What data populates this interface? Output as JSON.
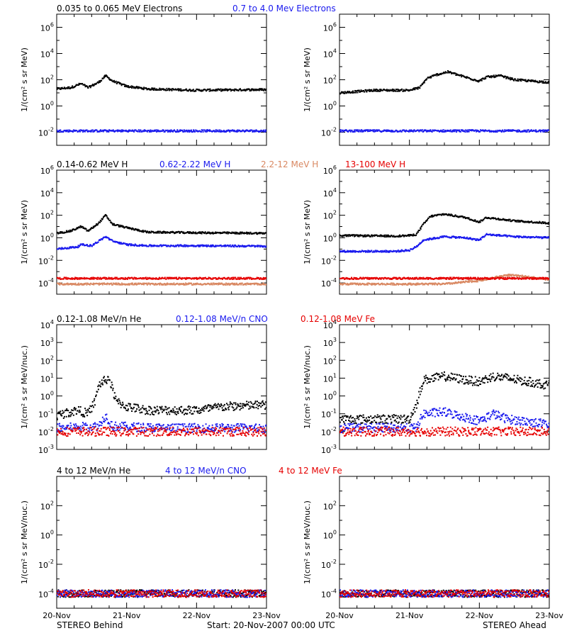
{
  "colors": {
    "black": "#000000",
    "blue": "#1a1aee",
    "tan": "#d98862",
    "red": "#e60000"
  },
  "footer": {
    "left": "STEREO Behind",
    "center": "Start: 20-Nov-2007 00:00 UTC",
    "right": "STEREO Ahead"
  },
  "rows": [
    {
      "labels": [
        {
          "text": "0.035 to 0.065 MeV Electrons",
          "color": "#000000"
        },
        {
          "text": "0.7 to 4.0 Mev Electrons",
          "color": "#1a1aee"
        }
      ]
    },
    {
      "labels": [
        {
          "text": "0.14-0.62 MeV H",
          "color": "#000000"
        },
        {
          "text": "0.62-2.22 MeV H",
          "color": "#1a1aee"
        },
        {
          "text": "2.2-12 MeV H",
          "color": "#d98862"
        },
        {
          "text": "13-100 MeV H",
          "color": "#e60000"
        }
      ]
    },
    {
      "labels": [
        {
          "text": "0.12-1.08 MeV/n He",
          "color": "#000000"
        },
        {
          "text": "0.12-1.08 MeV/n CNO",
          "color": "#1a1aee"
        },
        {
          "text": "0.12-1.08 MeV Fe",
          "color": "#e60000"
        }
      ]
    },
    {
      "labels": [
        {
          "text": "4 to 12 MeV/n He",
          "color": "#000000"
        },
        {
          "text": "4 to 12 MeV/n CNO",
          "color": "#1a1aee"
        },
        {
          "text": "4 to 12 MeV Fe",
          "color": "#e60000"
        }
      ]
    }
  ],
  "chart_data": [
    {
      "type": "scatter",
      "panel": "electrons-behind",
      "scale": "log",
      "ylabel": "1/(cm² s sr MeV)",
      "ylim_exp": [
        -3,
        7
      ],
      "x_ticks": [
        "20-Nov",
        "21-Nov",
        "22-Nov",
        "23-Nov"
      ],
      "x_range_days": [
        0,
        3
      ],
      "y_ticks": [
        {
          "base": "10",
          "exp": "6"
        },
        {
          "base": "10",
          "exp": "4"
        },
        {
          "base": "10",
          "exp": "2"
        },
        {
          "base": "10",
          "exp": "0"
        },
        {
          "base": "10",
          "exp": "-2"
        }
      ],
      "series": [
        {
          "name": "0.035 to 0.065 MeV Electrons",
          "color": "#000000",
          "x": [
            0,
            0.2,
            0.35,
            0.45,
            0.6,
            0.7,
            0.8,
            1.0,
            1.3,
            2.0,
            3.0
          ],
          "y": [
            1.3,
            1.4,
            1.7,
            1.4,
            1.8,
            2.3,
            1.9,
            1.5,
            1.3,
            1.2,
            1.25
          ]
        },
        {
          "name": "0.7 to 4.0 Mev Electrons",
          "color": "#1a1aee",
          "x": [
            0,
            1.5,
            3.0
          ],
          "y": [
            -1.9,
            -1.9,
            -1.9
          ]
        }
      ]
    },
    {
      "type": "scatter",
      "panel": "electrons-ahead",
      "scale": "log",
      "ylabel": "1/(cm² s sr MeV)",
      "ylim_exp": [
        -3,
        7
      ],
      "x_ticks": [
        "20-Nov",
        "21-Nov",
        "22-Nov",
        "23-Nov"
      ],
      "x_range_days": [
        0,
        3
      ],
      "y_ticks": [
        {
          "base": "10",
          "exp": "6"
        },
        {
          "base": "10",
          "exp": "4"
        },
        {
          "base": "10",
          "exp": "2"
        },
        {
          "base": "10",
          "exp": "0"
        },
        {
          "base": "10",
          "exp": "-2"
        }
      ],
      "series": [
        {
          "name": "0.035 to 0.065 MeV Electrons",
          "color": "#000000",
          "x": [
            0,
            0.5,
            1.0,
            1.15,
            1.25,
            1.4,
            1.55,
            1.8,
            2.0,
            2.1,
            2.3,
            2.5,
            3.0
          ],
          "y": [
            1.0,
            1.2,
            1.2,
            1.4,
            2.1,
            2.4,
            2.6,
            2.2,
            1.9,
            2.2,
            2.3,
            2.0,
            1.8
          ]
        },
        {
          "name": "0.7 to 4.0 Mev Electrons",
          "color": "#1a1aee",
          "x": [
            0,
            1.5,
            3.0
          ],
          "y": [
            -1.9,
            -1.9,
            -1.9
          ]
        }
      ]
    },
    {
      "type": "scatter",
      "panel": "protons-behind",
      "scale": "log",
      "ylabel": "1/(cm² s sr MeV)",
      "ylim_exp": [
        -5,
        6
      ],
      "x_ticks": [
        "20-Nov",
        "21-Nov",
        "22-Nov",
        "23-Nov"
      ],
      "x_range_days": [
        0,
        3
      ],
      "y_ticks": [
        {
          "base": "10",
          "exp": "6"
        },
        {
          "base": "10",
          "exp": "4"
        },
        {
          "base": "10",
          "exp": "2"
        },
        {
          "base": "10",
          "exp": "0"
        },
        {
          "base": "10",
          "exp": "-2"
        },
        {
          "base": "10",
          "exp": "-4"
        }
      ],
      "series": [
        {
          "name": "0.14-0.62 MeV H",
          "color": "#000000",
          "x": [
            0,
            0.2,
            0.35,
            0.45,
            0.6,
            0.7,
            0.8,
            1.0,
            1.3,
            2.0,
            3.0
          ],
          "y": [
            0.4,
            0.6,
            1.0,
            0.6,
            1.3,
            2.0,
            1.2,
            0.9,
            0.5,
            0.45,
            0.4
          ]
        },
        {
          "name": "0.62-2.22 MeV H",
          "color": "#1a1aee",
          "x": [
            0,
            0.3,
            0.35,
            0.5,
            0.7,
            0.8,
            1.0,
            1.3,
            2.0,
            3.0
          ],
          "y": [
            -1.0,
            -0.8,
            -0.6,
            -0.7,
            0.1,
            -0.3,
            -0.6,
            -0.7,
            -0.7,
            -0.75
          ]
        },
        {
          "name": "2.2-12 MeV H",
          "color": "#d98862",
          "x": [
            0,
            1.5,
            3.0
          ],
          "y": [
            -4.1,
            -4.1,
            -4.1
          ]
        },
        {
          "name": "13-100 MeV H",
          "color": "#e60000",
          "x": [
            0,
            1.5,
            3.0
          ],
          "y": [
            -3.6,
            -3.6,
            -3.6
          ]
        }
      ]
    },
    {
      "type": "scatter",
      "panel": "protons-ahead",
      "scale": "log",
      "ylabel": "1/(cm² s sr MeV)",
      "ylim_exp": [
        -5,
        6
      ],
      "x_ticks": [
        "20-Nov",
        "21-Nov",
        "22-Nov",
        "23-Nov"
      ],
      "x_range_days": [
        0,
        3
      ],
      "y_ticks": [
        {
          "base": "10",
          "exp": "6"
        },
        {
          "base": "10",
          "exp": "4"
        },
        {
          "base": "10",
          "exp": "2"
        },
        {
          "base": "10",
          "exp": "0"
        },
        {
          "base": "10",
          "exp": "-2"
        },
        {
          "base": "10",
          "exp": "-4"
        }
      ],
      "series": [
        {
          "name": "0.14-0.62 MeV H",
          "color": "#000000",
          "x": [
            0,
            0.8,
            1.0,
            1.1,
            1.2,
            1.3,
            1.5,
            1.8,
            2.0,
            2.1,
            2.5,
            3.0
          ],
          "y": [
            0.2,
            0.15,
            0.2,
            0.3,
            1.2,
            1.9,
            2.1,
            1.8,
            1.4,
            1.8,
            1.5,
            1.3
          ]
        },
        {
          "name": "0.62-2.22 MeV H",
          "color": "#1a1aee",
          "x": [
            0,
            0.8,
            1.0,
            1.1,
            1.2,
            1.5,
            1.8,
            2.0,
            2.1,
            2.5,
            3.0
          ],
          "y": [
            -1.2,
            -1.2,
            -1.1,
            -0.8,
            -0.2,
            0.1,
            0.0,
            -0.2,
            0.3,
            0.1,
            0.0
          ]
        },
        {
          "name": "2.2-12 MeV H",
          "color": "#d98862",
          "x": [
            0,
            1.5,
            2.0,
            2.4,
            2.6,
            3.0
          ],
          "y": [
            -4.1,
            -4.1,
            -3.8,
            -3.3,
            -3.4,
            -3.7
          ]
        },
        {
          "name": "13-100 MeV H",
          "color": "#e60000",
          "x": [
            0,
            1.5,
            3.0
          ],
          "y": [
            -3.6,
            -3.6,
            -3.6
          ]
        }
      ]
    },
    {
      "type": "scatter",
      "panel": "heavy-low-behind",
      "scale": "log",
      "ylabel": "1/(cm² s sr MeV/nuc.)",
      "ylim_exp": [
        -3,
        4
      ],
      "x_ticks": [
        "20-Nov",
        "21-Nov",
        "22-Nov",
        "23-Nov"
      ],
      "x_range_days": [
        0,
        3
      ],
      "y_ticks": [
        {
          "base": "10",
          "exp": "4"
        },
        {
          "base": "10",
          "exp": "3"
        },
        {
          "base": "10",
          "exp": "2"
        },
        {
          "base": "10",
          "exp": "1"
        },
        {
          "base": "10",
          "exp": "0"
        },
        {
          "base": "10",
          "exp": "-1"
        },
        {
          "base": "10",
          "exp": "-2"
        },
        {
          "base": "10",
          "exp": "-3"
        }
      ],
      "series": [
        {
          "name": "0.12-1.08 MeV/n He",
          "color": "#000000",
          "x": [
            0,
            0.3,
            0.45,
            0.55,
            0.6,
            0.7,
            0.75,
            0.85,
            1.0,
            1.3,
            2.0,
            2.4,
            3.0
          ],
          "y": [
            -1.1,
            -0.8,
            -1.0,
            -0.3,
            0.6,
            0.9,
            1.0,
            -0.3,
            -0.6,
            -0.8,
            -0.8,
            -0.6,
            -0.5
          ]
        },
        {
          "name": "0.12-1.08 MeV/n CNO",
          "color": "#1a1aee",
          "x": [
            0,
            0.6,
            0.7,
            0.8,
            1.5,
            3.0
          ],
          "y": [
            -1.8,
            -1.7,
            -1.1,
            -1.7,
            -1.8,
            -1.8
          ]
        },
        {
          "name": "0.12-1.08 MeV Fe",
          "color": "#e60000",
          "x": [
            0,
            1.5,
            3.0
          ],
          "y": [
            -2.0,
            -2.0,
            -2.0
          ]
        }
      ]
    },
    {
      "type": "scatter",
      "panel": "heavy-low-ahead",
      "scale": "log",
      "ylabel": "1/(cm² s sr MeV/nuc.)",
      "ylim_exp": [
        -3,
        4
      ],
      "x_ticks": [
        "20-Nov",
        "21-Nov",
        "22-Nov",
        "23-Nov"
      ],
      "x_range_days": [
        0,
        3
      ],
      "y_ticks": [
        {
          "base": "10",
          "exp": "4"
        },
        {
          "base": "10",
          "exp": "3"
        },
        {
          "base": "10",
          "exp": "2"
        },
        {
          "base": "10",
          "exp": "1"
        },
        {
          "base": "10",
          "exp": "0"
        },
        {
          "base": "10",
          "exp": "-1"
        },
        {
          "base": "10",
          "exp": "-2"
        },
        {
          "base": "10",
          "exp": "-3"
        }
      ],
      "series": [
        {
          "name": "0.12-1.08 MeV/n He",
          "color": "#000000",
          "x": [
            0,
            0.8,
            1.0,
            1.1,
            1.2,
            1.5,
            1.8,
            2.0,
            2.2,
            2.4,
            2.7,
            3.0
          ],
          "y": [
            -1.3,
            -1.3,
            -1.3,
            -0.5,
            0.9,
            1.1,
            0.9,
            0.8,
            1.1,
            1.0,
            0.8,
            0.6
          ]
        },
        {
          "name": "0.12-1.08 MeV/n CNO",
          "color": "#1a1aee",
          "x": [
            0,
            1.1,
            1.2,
            1.5,
            1.8,
            2.0,
            2.2,
            2.4,
            3.0
          ],
          "y": [
            -1.8,
            -1.8,
            -1.0,
            -0.9,
            -1.2,
            -1.4,
            -1.0,
            -1.3,
            -1.6
          ]
        },
        {
          "name": "0.12-1.08 MeV Fe",
          "color": "#e60000",
          "x": [
            0,
            1.5,
            3.0
          ],
          "y": [
            -2.0,
            -2.0,
            -2.0
          ]
        }
      ]
    },
    {
      "type": "scatter",
      "panel": "heavy-high-behind",
      "scale": "log",
      "ylabel": "1/(cm² s sr MeV/nuc.)",
      "ylim_exp": [
        -5,
        4
      ],
      "x_ticks": [
        "20-Nov",
        "21-Nov",
        "22-Nov",
        "23-Nov"
      ],
      "x_range_days": [
        0,
        3
      ],
      "y_ticks": [
        {
          "base": "10",
          "exp": "2"
        },
        {
          "base": "10",
          "exp": "0"
        },
        {
          "base": "10",
          "exp": "-2"
        },
        {
          "base": "10",
          "exp": "-4"
        }
      ],
      "series": [
        {
          "name": "4 to 12 MeV/n He",
          "color": "#000000",
          "x": [
            0,
            1.5,
            3.0
          ],
          "y": [
            -4.0,
            -4.0,
            -4.0
          ]
        },
        {
          "name": "4 to 12 MeV/n CNO",
          "color": "#1a1aee",
          "x": [
            0,
            1.5,
            3.0
          ],
          "y": [
            -4.0,
            -4.0,
            -4.0
          ]
        },
        {
          "name": "4 to 12 MeV Fe",
          "color": "#e60000",
          "x": [
            0,
            1.5,
            3.0
          ],
          "y": [
            -4.0,
            -4.0,
            -4.0
          ]
        }
      ]
    },
    {
      "type": "scatter",
      "panel": "heavy-high-ahead",
      "scale": "log",
      "ylabel": "1/(cm² s sr MeV/nuc.)",
      "ylim_exp": [
        -5,
        4
      ],
      "x_ticks": [
        "20-Nov",
        "21-Nov",
        "22-Nov",
        "23-Nov"
      ],
      "x_range_days": [
        0,
        3
      ],
      "y_ticks": [
        {
          "base": "10",
          "exp": "2"
        },
        {
          "base": "10",
          "exp": "0"
        },
        {
          "base": "10",
          "exp": "-2"
        },
        {
          "base": "10",
          "exp": "-4"
        }
      ],
      "series": [
        {
          "name": "4 to 12 MeV/n He",
          "color": "#000000",
          "x": [
            0,
            1.5,
            3.0
          ],
          "y": [
            -4.0,
            -4.0,
            -4.0
          ]
        },
        {
          "name": "4 to 12 MeV/n CNO",
          "color": "#1a1aee",
          "x": [
            0,
            1.5,
            3.0
          ],
          "y": [
            -4.0,
            -4.0,
            -4.0
          ]
        },
        {
          "name": "4 to 12 MeV Fe",
          "color": "#e60000",
          "x": [
            0,
            1.5,
            3.0
          ],
          "y": [
            -4.0,
            -4.0,
            -4.0
          ]
        }
      ]
    }
  ]
}
